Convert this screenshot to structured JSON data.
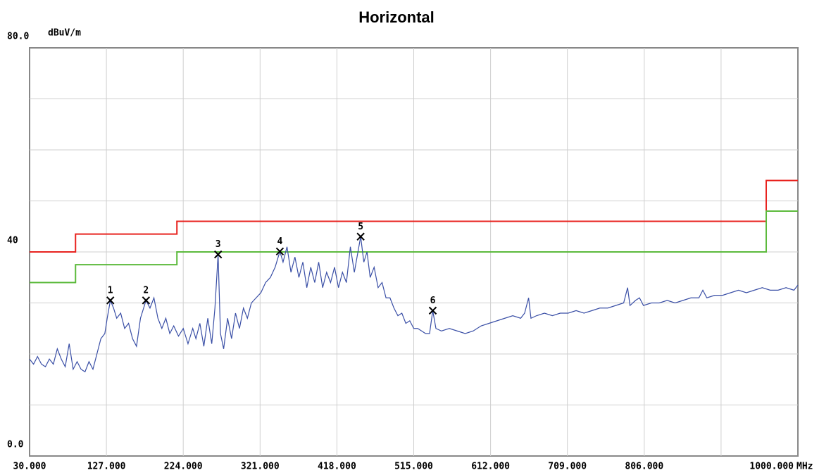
{
  "chart_data": {
    "type": "line",
    "title": "Horizontal",
    "y_unit": "dBuV/m",
    "x_unit": "MHz",
    "xlim": [
      30,
      1000
    ],
    "ylim": [
      0,
      80
    ],
    "xticks": [
      {
        "value": 30,
        "label": "30.000"
      },
      {
        "value": 127,
        "label": "127.000"
      },
      {
        "value": 224,
        "label": "224.000"
      },
      {
        "value": 321,
        "label": "321.000"
      },
      {
        "value": 418,
        "label": "418.000"
      },
      {
        "value": 515,
        "label": "515.000"
      },
      {
        "value": 612,
        "label": "612.000"
      },
      {
        "value": 709,
        "label": "709.000"
      },
      {
        "value": 806,
        "label": "806.000"
      },
      {
        "value": 903,
        "label": null
      },
      {
        "value": 1000,
        "label": "1000.000"
      }
    ],
    "yticks": [
      {
        "value": 0,
        "label": "0.0"
      },
      {
        "value": 10,
        "label": null
      },
      {
        "value": 20,
        "label": null
      },
      {
        "value": 30,
        "label": null
      },
      40,
      {
        "value": 50,
        "label": null
      },
      {
        "value": 60,
        "label": null
      },
      {
        "value": 70,
        "label": null
      },
      {
        "value": 80,
        "label": "80.0"
      }
    ],
    "grid": true,
    "series": [
      {
        "color": "#e8231f",
        "x": [
          30,
          88,
          88,
          216,
          216,
          960,
          960,
          1000
        ],
        "values": [
          40,
          40,
          43.5,
          43.5,
          46,
          46,
          54,
          54
        ]
      },
      {
        "color": "#5cba3c",
        "x": [
          30,
          88,
          88,
          216,
          216,
          960,
          960,
          1000
        ],
        "values": [
          34,
          34,
          37.5,
          37.5,
          40,
          40,
          48,
          48
        ]
      },
      {
        "color": "#3a4fa6",
        "x": [
          30,
          35,
          40,
          45,
          50,
          55,
          60,
          65,
          70,
          75,
          80,
          85,
          90,
          95,
          100,
          105,
          110,
          115,
          120,
          125,
          128,
          132,
          136,
          140,
          145,
          150,
          155,
          160,
          165,
          170,
          177,
          182,
          187,
          192,
          197,
          202,
          207,
          212,
          218,
          224,
          230,
          236,
          240,
          245,
          250,
          255,
          260,
          264,
          268,
          271,
          275,
          280,
          285,
          290,
          295,
          300,
          305,
          310,
          316,
          322,
          328,
          334,
          340,
          346,
          350,
          355,
          360,
          365,
          370,
          375,
          380,
          385,
          390,
          395,
          400,
          405,
          410,
          415,
          420,
          425,
          430,
          435,
          440,
          448,
          452,
          456,
          460,
          465,
          470,
          475,
          480,
          485,
          490,
          495,
          500,
          505,
          510,
          515,
          520,
          525,
          530,
          535,
          539,
          543,
          550,
          560,
          570,
          580,
          590,
          600,
          610,
          620,
          630,
          640,
          650,
          655,
          660,
          663,
          670,
          680,
          690,
          700,
          710,
          720,
          730,
          740,
          750,
          760,
          770,
          780,
          785,
          788,
          795,
          800,
          805,
          815,
          825,
          835,
          845,
          855,
          865,
          875,
          880,
          885,
          895,
          905,
          915,
          925,
          935,
          945,
          955,
          965,
          975,
          985,
          995,
          1000
        ],
        "values": [
          19,
          18,
          19.5,
          18,
          17.5,
          19,
          18,
          21,
          19,
          17.5,
          22,
          17,
          18.5,
          17,
          16.5,
          18.5,
          17,
          20,
          23,
          24,
          27,
          30.5,
          29,
          27,
          28,
          25,
          26,
          23,
          21.5,
          27,
          30.5,
          29,
          31,
          27,
          25,
          27,
          24,
          25.5,
          23.5,
          25,
          22,
          25,
          23,
          26,
          21.5,
          27,
          22,
          29,
          39.5,
          24,
          21,
          27,
          23,
          28,
          25,
          29,
          27,
          30,
          31,
          32,
          34,
          35,
          37,
          40.1,
          38,
          41,
          36,
          39,
          35,
          38,
          33,
          37,
          34,
          38,
          33,
          36,
          34,
          37,
          33,
          36,
          34,
          41,
          36,
          43,
          38,
          40,
          35,
          37,
          33,
          34,
          31,
          31,
          29,
          27.5,
          28,
          26,
          26.5,
          25,
          25,
          24.5,
          24,
          24,
          28.5,
          25,
          24.5,
          25,
          24.5,
          24,
          24.5,
          25.5,
          26,
          26.5,
          27,
          27.5,
          27,
          28,
          31,
          27,
          27.5,
          28,
          27.5,
          28,
          28,
          28.5,
          28,
          28.5,
          29,
          29,
          29.5,
          30,
          33,
          29.5,
          30.5,
          31,
          29.5,
          30,
          30,
          30.5,
          30,
          30.5,
          31,
          31,
          32.5,
          31,
          31.5,
          31.5,
          32,
          32.5,
          32,
          32.5,
          33,
          32.5,
          32.5,
          33,
          32.5,
          33.5
        ]
      }
    ],
    "markers": {
      "labels": [
        "1",
        "2",
        "3",
        "4",
        "5",
        "6"
      ],
      "x": [
        132,
        177,
        268,
        346,
        448,
        539
      ],
      "values": [
        30.5,
        30.5,
        39.5,
        40.1,
        43,
        28.5
      ]
    }
  }
}
